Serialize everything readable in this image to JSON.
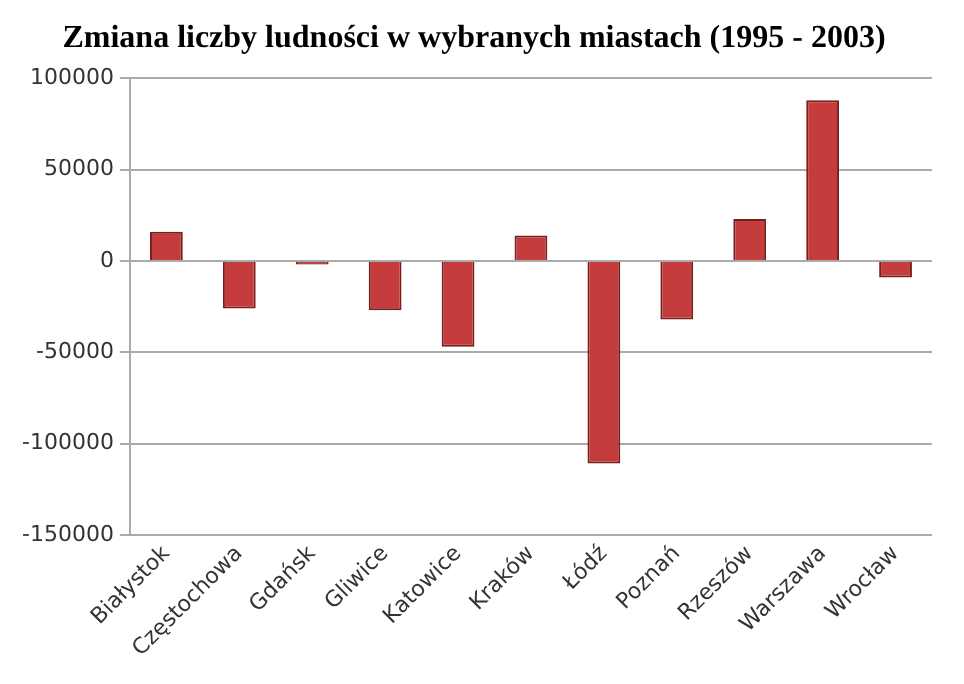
{
  "chart_data": {
    "type": "bar",
    "title": "Zmiana liczby ludności w wybranych miastach (1995 - 2003)",
    "categories": [
      "Białystok",
      "Częstochowa",
      "Gdańsk",
      "Gliwice",
      "Katowice",
      "Kraków",
      "Łódź",
      "Poznań",
      "Rzeszów",
      "Warszawa",
      "Wrocław"
    ],
    "values": [
      16000,
      -26000,
      -2000,
      -27000,
      -47000,
      14000,
      -111000,
      -32000,
      23000,
      88000,
      -9000
    ],
    "color": "#c43c3c",
    "ylim": [
      -150000,
      100000
    ],
    "yticks": [
      -150000,
      -100000,
      -50000,
      0,
      50000,
      100000
    ],
    "grid": "y",
    "legend": false
  }
}
